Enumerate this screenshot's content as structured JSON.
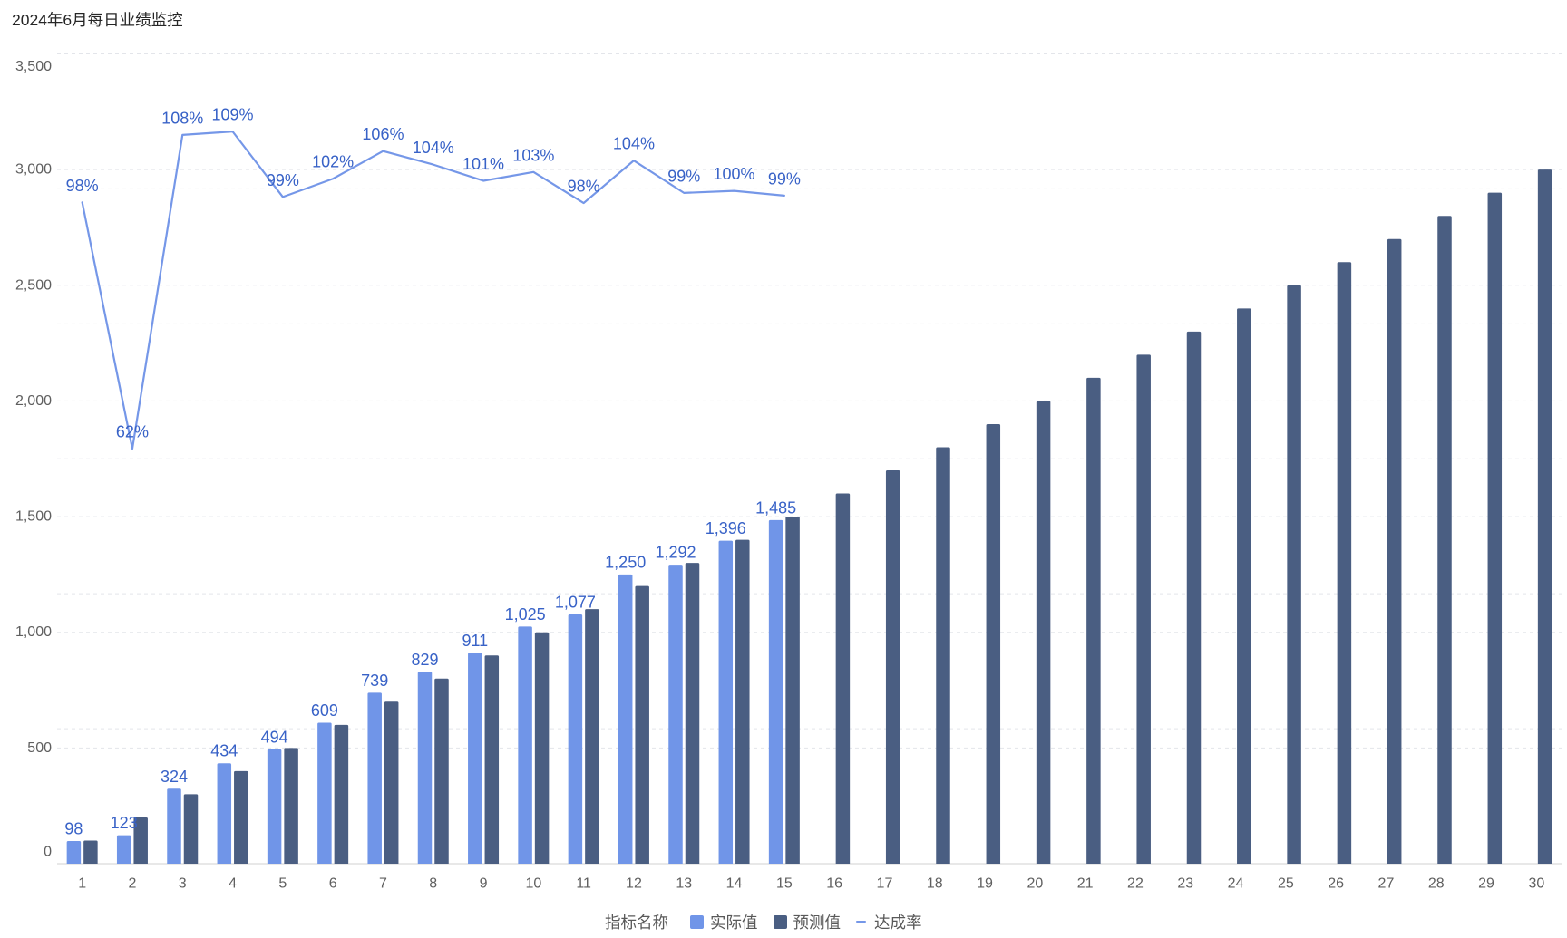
{
  "chart_data": {
    "type": "bar",
    "title": "2024年6月每日业绩监控",
    "categories": [
      "1",
      "2",
      "3",
      "4",
      "5",
      "6",
      "7",
      "8",
      "9",
      "10",
      "11",
      "12",
      "13",
      "14",
      "15",
      "16",
      "17",
      "18",
      "19",
      "20",
      "21",
      "22",
      "23",
      "24",
      "25",
      "26",
      "27",
      "28",
      "29",
      "30"
    ],
    "ylim": [
      0,
      3500
    ],
    "yticks": [
      0,
      500,
      1000,
      1500,
      2000,
      2500,
      3000,
      3500
    ],
    "ytick_labels": [
      "0",
      "500",
      "1,000",
      "1,500",
      "2,000",
      "2,500",
      "3,000",
      "3,500"
    ],
    "y2lim": [
      0,
      120
    ],
    "grid": true,
    "label_color": "#3862C7",
    "legend": {
      "title": "指标名称",
      "placement": "bottom"
    },
    "series": [
      {
        "name": "实际值",
        "type": "bar",
        "axis": "left",
        "color": "#7095E8",
        "values": [
          98,
          123,
          324,
          434,
          494,
          609,
          739,
          829,
          911,
          1025,
          1077,
          1250,
          1292,
          1396,
          1485,
          null,
          null,
          null,
          null,
          null,
          null,
          null,
          null,
          null,
          null,
          null,
          null,
          null,
          null,
          null
        ],
        "labels": [
          "98",
          "123",
          "324",
          "434",
          "494",
          "609",
          "739",
          "829",
          "911",
          "1,025",
          "1,077",
          "1,250",
          "1,292",
          "1,396",
          "1,485",
          null,
          null,
          null,
          null,
          null,
          null,
          null,
          null,
          null,
          null,
          null,
          null,
          null,
          null,
          null
        ]
      },
      {
        "name": "预测值",
        "type": "bar",
        "axis": "left",
        "color": "#4A5E82",
        "values": [
          100,
          200,
          300,
          400,
          500,
          600,
          700,
          800,
          900,
          1000,
          1100,
          1200,
          1300,
          1400,
          1500,
          1600,
          1700,
          1800,
          1900,
          2000,
          2100,
          2200,
          2300,
          2400,
          2500,
          2600,
          2700,
          2800,
          2900,
          3000
        ]
      },
      {
        "name": "达成率",
        "type": "line",
        "axis": "right",
        "color": "#7597E8",
        "values": [
          98,
          61.5,
          108,
          108.5,
          98.8,
          101.5,
          105.6,
          103.6,
          101.2,
          102.5,
          97.9,
          104.2,
          99.4,
          99.7,
          99,
          null,
          null,
          null,
          null,
          null,
          null,
          null,
          null,
          null,
          null,
          null,
          null,
          null,
          null,
          null
        ],
        "labels": [
          "98%",
          "62%",
          "108%",
          "109%",
          "99%",
          "102%",
          "106%",
          "104%",
          "101%",
          "103%",
          "98%",
          "104%",
          "99%",
          "100%",
          "99%",
          null,
          null,
          null,
          null,
          null,
          null,
          null,
          null,
          null,
          null,
          null,
          null,
          null,
          null,
          null
        ]
      }
    ]
  }
}
